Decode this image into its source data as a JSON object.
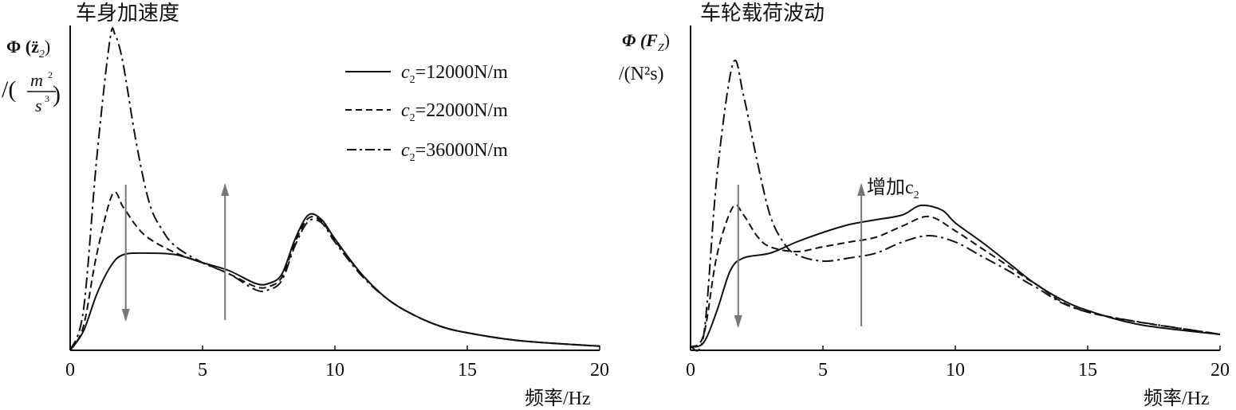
{
  "chart_data": [
    {
      "type": "line",
      "title": "车身加速度",
      "ylabel_main": "Φ(z̈₂)",
      "ylabel_unit": "/(m²/s³)",
      "xlabel": "频率/Hz",
      "xlim": [
        0,
        20
      ],
      "ylim": [
        0,
        100
      ],
      "xticks": [
        "0",
        "5",
        "10",
        "15",
        "20"
      ],
      "y_units_note": "relative (no y tick labels shown)",
      "legend": [
        "c₂=12000N/m",
        "c₂=22000N/m",
        "c₂=36000N/m"
      ],
      "legend_position": "top-right",
      "arrows": [
        {
          "x": 2.1,
          "direction": "down"
        },
        {
          "x": 5.85,
          "direction": "up"
        }
      ],
      "series": [
        {
          "name": "c₂=12000N/m",
          "style": "solid",
          "x": [
            0,
            0.5,
            1,
            1.5,
            2,
            3,
            4,
            5,
            6,
            7,
            7.5,
            8,
            8.5,
            9,
            9.5,
            10,
            11,
            12,
            13,
            14,
            15,
            17,
            20
          ],
          "y": [
            0,
            6,
            17.5,
            26,
            30,
            30.5,
            30,
            27.5,
            25,
            21,
            21,
            24,
            35,
            42.5,
            41,
            35,
            24,
            16,
            11,
            7.5,
            5.5,
            3,
            1.3
          ]
        },
        {
          "name": "c₂=22000N/m",
          "style": "dashed",
          "x": [
            0,
            0.5,
            1,
            1.6,
            2,
            2.5,
            3,
            4,
            5,
            6,
            7,
            7.5,
            8,
            8.5,
            9,
            9.5,
            10,
            11,
            12,
            13,
            14,
            15,
            17,
            20
          ],
          "y": [
            0,
            7.5,
            30,
            49,
            45,
            39,
            35,
            30.5,
            27.5,
            24,
            20,
            20,
            23,
            34,
            41.5,
            40.5,
            34.5,
            24,
            16,
            11,
            7.5,
            5.5,
            3,
            1.3
          ]
        },
        {
          "name": "c₂=36000N/m",
          "style": "dashdot",
          "x": [
            0,
            0.5,
            1,
            1.5,
            1.7,
            2,
            2.5,
            3,
            3.5,
            4,
            5,
            6,
            7,
            7.5,
            8,
            8.5,
            9,
            9.5,
            10,
            11,
            12,
            13,
            14,
            15,
            17,
            20
          ],
          "y": [
            0,
            12.5,
            60,
            97.5,
            99,
            90,
            65,
            46,
            37.5,
            32.5,
            27.5,
            24,
            19,
            19,
            22,
            33,
            40.5,
            40,
            34,
            23.5,
            16,
            11,
            7.5,
            5.5,
            3,
            1.3
          ]
        }
      ]
    },
    {
      "type": "line",
      "title": "车轮载荷波动",
      "ylabel_main": "Φ(F_Z)",
      "ylabel_unit": "/(N²s)",
      "xlabel": "频率/Hz",
      "xlim": [
        0,
        20
      ],
      "ylim": [
        0,
        100
      ],
      "xticks": [
        "0",
        "5",
        "10",
        "15",
        "20"
      ],
      "y_units_note": "relative (no y tick labels shown)",
      "annotation": "增加c₂",
      "arrows": [
        {
          "x": 1.8,
          "direction": "down"
        },
        {
          "x": 6.45,
          "direction": "up"
        }
      ],
      "series": [
        {
          "name": "c₂=12000N/m",
          "style": "solid",
          "x": [
            0,
            0.5,
            1,
            1.5,
            2,
            3,
            4,
            5,
            6,
            7,
            8,
            8.7,
            9.5,
            10,
            11,
            12,
            13,
            14,
            15,
            17,
            20
          ],
          "y": [
            1,
            2.5,
            12.5,
            25,
            29,
            30.5,
            34,
            37,
            39.5,
            41,
            42.5,
            45.5,
            44,
            40,
            34,
            27.5,
            21,
            16,
            12.5,
            8,
            5
          ]
        },
        {
          "name": "c₂=22000N/m",
          "style": "dashed",
          "x": [
            0,
            0.5,
            1,
            1.6,
            2,
            2.5,
            3,
            4,
            5,
            6,
            7,
            8,
            9,
            10,
            11,
            12,
            13,
            15,
            20
          ],
          "y": [
            1,
            5,
            30,
            45,
            42.5,
            36,
            32.5,
            31,
            32.5,
            34,
            35.5,
            39,
            42,
            37.5,
            32,
            26.5,
            21,
            12,
            5
          ]
        },
        {
          "name": "c₂=36000N/m",
          "style": "dashdot",
          "x": [
            0,
            0.5,
            1,
            1.6,
            2,
            2.5,
            3,
            3.5,
            4,
            5,
            6,
            7,
            8,
            9,
            10,
            11,
            12,
            13,
            15,
            20
          ],
          "y": [
            1,
            5,
            55,
            90,
            80,
            60,
            42.5,
            34,
            30,
            28,
            29,
            30.5,
            34,
            36,
            34,
            29.5,
            25,
            20,
            12,
            5
          ]
        }
      ]
    }
  ],
  "labels": {
    "left_title": "车身加速度",
    "left_y_main": "Φ (z̈",
    "left_y_sub": "2",
    "left_y_unit_m": "m",
    "left_y_unit_s": "s",
    "left_xlabel": "频率/Hz",
    "right_title": "车轮载荷波动",
    "right_y_main": "Φ (F",
    "right_y_sub": "Z",
    "right_y_unit": "/(N²s)",
    "right_xlabel": "频率/Hz",
    "annotation_text": "增加c",
    "annotation_sub": "2",
    "legend": [
      {
        "c": "c",
        "sub": "2",
        "text": "=12000N/m"
      },
      {
        "c": "c",
        "sub": "2",
        "text": "=22000N/m"
      },
      {
        "c": "c",
        "sub": "2",
        "text": "=36000N/m"
      }
    ],
    "ticks": [
      "0",
      "5",
      "10",
      "15",
      "20"
    ]
  }
}
